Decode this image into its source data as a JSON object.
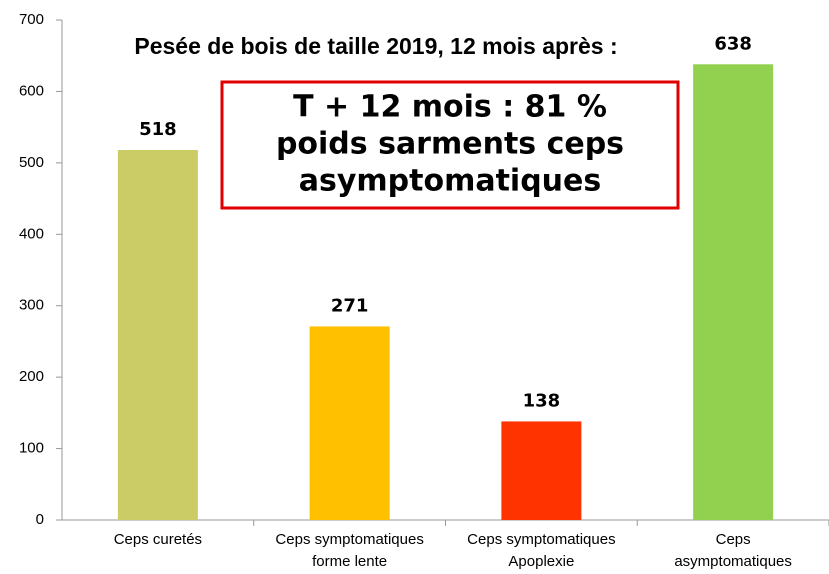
{
  "chart_data": {
    "type": "bar",
    "title": "Pesée de bois de taille 2019, 12 mois après :",
    "annotation": [
      "T + 12 mois  : 81 %",
      "poids sarments ceps",
      "asymptomatiques"
    ],
    "categories": [
      [
        "Ceps curetés"
      ],
      [
        "Ceps symptomatiques",
        "forme lente"
      ],
      [
        "Ceps symptomatiques",
        "Apoplexie"
      ],
      [
        "Ceps",
        "asymptomatiques"
      ]
    ],
    "values": [
      518,
      271,
      138,
      638
    ],
    "colors": [
      "#cccc66",
      "#ffc000",
      "#ff3300",
      "#92d050"
    ],
    "ylim": [
      0,
      700
    ],
    "yticks": [
      0,
      100,
      200,
      300,
      400,
      500,
      600,
      700
    ],
    "grid": false
  }
}
